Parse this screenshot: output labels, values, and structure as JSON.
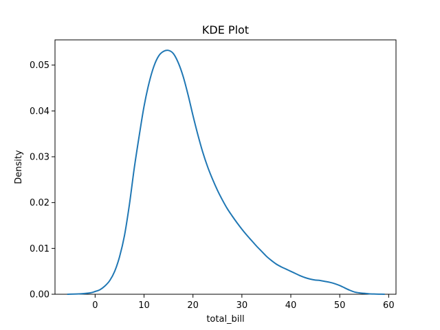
{
  "chart_data": {
    "type": "line",
    "title": "KDE Plot",
    "xlabel": "total_bill",
    "ylabel": "Density",
    "xlim": [
      -8.2,
      61.5
    ],
    "ylim": [
      0,
      0.0555
    ],
    "xticks": [
      0,
      10,
      20,
      30,
      40,
      50,
      60
    ],
    "yticks": [
      0.0,
      0.01,
      0.02,
      0.03,
      0.04,
      0.05
    ],
    "x_tick_labels": [
      "0",
      "10",
      "20",
      "30",
      "40",
      "50",
      "60"
    ],
    "y_tick_labels": [
      "0.00",
      "0.01",
      "0.02",
      "0.03",
      "0.04",
      "0.05"
    ],
    "grid": false,
    "legend": false,
    "series": [
      {
        "color": "#1f77b4",
        "x": [
          -5.7,
          -3,
          -1,
          0,
          1,
          2,
          3,
          4,
          5,
          6,
          7,
          8,
          9,
          10,
          11,
          12,
          13,
          14,
          15,
          16,
          17,
          18,
          19,
          20,
          21,
          22,
          23,
          24,
          25,
          26,
          27,
          28,
          29,
          30,
          31,
          32,
          33,
          34,
          35,
          36,
          37,
          38,
          39,
          40,
          41,
          42,
          43,
          44,
          45,
          46,
          47,
          48,
          49,
          50,
          51,
          52,
          53,
          54,
          55,
          56,
          57,
          58,
          59.2
        ],
        "y": [
          0.0,
          0.0001,
          0.0003,
          0.0006,
          0.001,
          0.0018,
          0.003,
          0.005,
          0.0082,
          0.0128,
          0.0195,
          0.0275,
          0.0345,
          0.041,
          0.046,
          0.0497,
          0.052,
          0.053,
          0.0532,
          0.0525,
          0.0505,
          0.0475,
          0.0435,
          0.039,
          0.0348,
          0.031,
          0.0278,
          0.0251,
          0.0227,
          0.0206,
          0.0187,
          0.0171,
          0.0156,
          0.0142,
          0.0129,
          0.0117,
          0.0105,
          0.0094,
          0.0083,
          0.0074,
          0.0066,
          0.006,
          0.0055,
          0.005,
          0.0045,
          0.004,
          0.0036,
          0.0033,
          0.0031,
          0.003,
          0.0028,
          0.0026,
          0.0023,
          0.0019,
          0.0014,
          0.0009,
          0.0005,
          0.0003,
          0.0002,
          0.0001,
          5e-05,
          2e-05,
          0.0
        ]
      }
    ]
  }
}
